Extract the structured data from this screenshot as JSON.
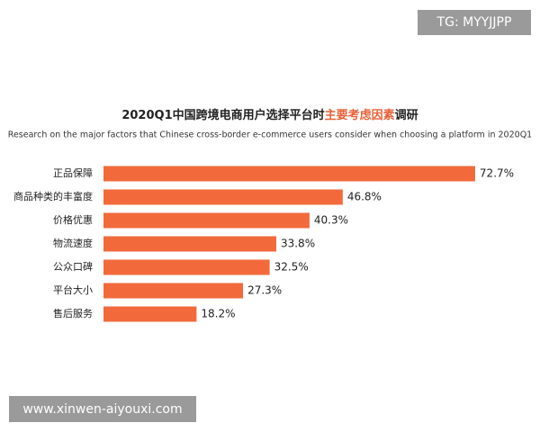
{
  "chart_data": {
    "type": "bar",
    "orientation": "horizontal",
    "title": [
      "2020Q1中国跨境电商用户选择平台时",
      "主要考虑因素",
      "调研"
    ],
    "title_colors": [
      "#222222",
      "#e8623a",
      "#222222"
    ],
    "subtitle": "Research on the major factors that Chinese cross-border e-commerce users consider when choosing a platform in 2020Q1",
    "categories": [
      "正品保障",
      "商品种类的丰富度",
      "价格优惠",
      "物流速度",
      "公众口碑",
      "平台大小",
      "售后服务"
    ],
    "values": [
      72.7,
      46.8,
      40.3,
      33.8,
      32.5,
      27.3,
      18.2
    ],
    "value_labels": [
      "72.7%",
      "46.8%",
      "40.3%",
      "33.8%",
      "32.5%",
      "27.3%",
      "18.2%"
    ],
    "color": "#f26a3b",
    "annotations": [
      "TG: MYYJJPP",
      "www.xinwen-aiyouxi.com"
    ]
  }
}
